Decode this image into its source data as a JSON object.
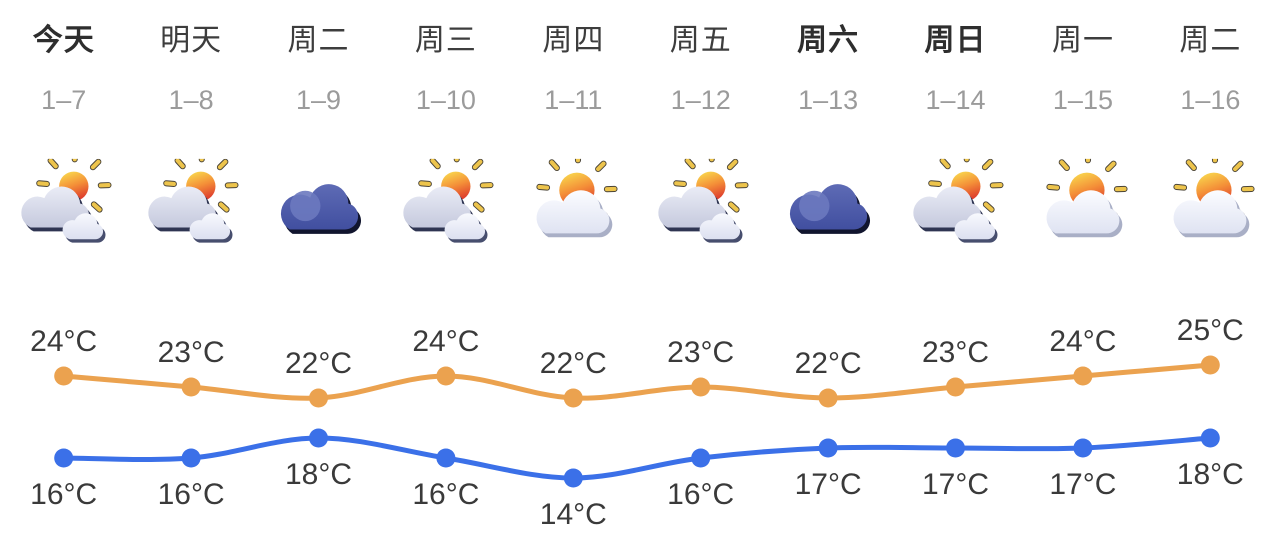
{
  "colors": {
    "high_line": "#EBA24F",
    "low_line": "#3B70E8",
    "day_text": "#3D3D3D",
    "date_text": "#9B9B9B",
    "temp_label_text": "#3A3A3A"
  },
  "days": [
    {
      "label": "今天",
      "date": "1–7",
      "bold": true,
      "icon": "partly-cloudy-icon",
      "high": 24,
      "low": 16
    },
    {
      "label": "明天",
      "date": "1–8",
      "bold": false,
      "icon": "partly-cloudy-icon",
      "high": 23,
      "low": 16
    },
    {
      "label": "周二",
      "date": "1–9",
      "bold": false,
      "icon": "overcast-icon",
      "high": 22,
      "low": 18
    },
    {
      "label": "周三",
      "date": "1–10",
      "bold": false,
      "icon": "partly-cloudy-icon",
      "high": 24,
      "low": 16
    },
    {
      "label": "周四",
      "date": "1–11",
      "bold": false,
      "icon": "sunny-cloudy-icon",
      "high": 22,
      "low": 14
    },
    {
      "label": "周五",
      "date": "1–12",
      "bold": false,
      "icon": "partly-cloudy-icon",
      "high": 23,
      "low": 16
    },
    {
      "label": "周六",
      "date": "1–13",
      "bold": true,
      "icon": "overcast-icon",
      "high": 22,
      "low": 17
    },
    {
      "label": "周日",
      "date": "1–14",
      "bold": true,
      "icon": "partly-cloudy-icon",
      "high": 23,
      "low": 17
    },
    {
      "label": "周一",
      "date": "1–15",
      "bold": false,
      "icon": "sunny-cloudy-icon",
      "high": 24,
      "low": 17
    },
    {
      "label": "周二",
      "date": "1–16",
      "bold": false,
      "icon": "sunny-cloudy-icon",
      "high": 25,
      "low": 18
    }
  ],
  "chart_data": {
    "type": "line",
    "categories": [
      "今天",
      "明天",
      "周二",
      "周三",
      "周四",
      "周五",
      "周六",
      "周日",
      "周一",
      "周二"
    ],
    "category_dates": [
      "1–7",
      "1–8",
      "1–9",
      "1–10",
      "1–11",
      "1–12",
      "1–13",
      "1–14",
      "1–15",
      "1–16"
    ],
    "unit": "°C",
    "series": [
      {
        "name": "high",
        "color": "#EBA24F",
        "values": [
          24,
          23,
          22,
          24,
          22,
          23,
          22,
          23,
          24,
          25
        ]
      },
      {
        "name": "low",
        "color": "#3B70E8",
        "values": [
          16,
          16,
          18,
          16,
          14,
          16,
          17,
          17,
          17,
          18
        ]
      }
    ],
    "value_labels": true,
    "legend": "none",
    "grid": false,
    "axes": "hidden"
  }
}
